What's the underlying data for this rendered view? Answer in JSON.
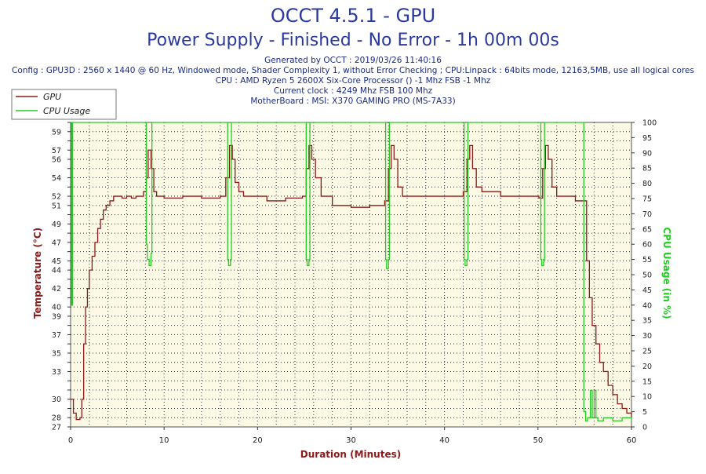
{
  "chart_data": {
    "type": "line",
    "title": "OCCT 4.5.1 - GPU",
    "subtitle": "Power Supply - Finished - No Error - 1h 00m 00s",
    "info_lines": [
      "Generated by OCCT : 2019/03/26 11:40:16",
      "Config : GPU3D : 2560 x 1440 @ 60 Hz, Windowed mode, Shader Complexity 1, without Error Checking ; CPU:Linpack : 64bits mode, 12163,5MB, use all logical cores",
      "CPU : AMD Ryzen 5 2600X Six-Core Processor () -1 Mhz FSB -1 Mhz",
      "Current clock : 4249 Mhz FSB 100 Mhz",
      "MotherBoard : MSI: X370 GAMING PRO (MS-7A33)"
    ],
    "xlabel": "Duration (Minutes)",
    "ylabel": "Temperature (°C)",
    "y2label": "CPU Usage (in %)",
    "xlim": [
      0,
      60
    ],
    "ylim": [
      27,
      60
    ],
    "y2lim": [
      0,
      100
    ],
    "x_ticks": [
      "0",
      "10",
      "20",
      "30",
      "40",
      "50",
      "60"
    ],
    "y_ticks": [
      "27",
      "28",
      "29",
      "30",
      "31",
      "32",
      "33",
      "34",
      "35",
      "36",
      "37",
      "38",
      "39",
      "40",
      "41",
      "42",
      "43",
      "44",
      "45",
      "46",
      "47",
      "48",
      "49",
      "50",
      "51",
      "52",
      "53",
      "54",
      "55",
      "56",
      "57",
      "58",
      "59",
      "60"
    ],
    "y_tick_labels": [
      "27",
      "28",
      "",
      "30",
      "",
      "",
      "33",
      "",
      "35",
      "",
      "37",
      "",
      "39",
      "40",
      "",
      "42",
      "",
      "44",
      "45",
      "",
      "47",
      "",
      "49",
      "",
      "51",
      "52",
      "",
      "54",
      "",
      "56",
      "57",
      "",
      "59",
      ""
    ],
    "y2_ticks": [
      "0",
      "5",
      "10",
      "15",
      "20",
      "25",
      "30",
      "35",
      "40",
      "45",
      "50",
      "55",
      "60",
      "65",
      "70",
      "75",
      "80",
      "85",
      "90",
      "95",
      "100"
    ],
    "grid": true,
    "legend_position": "top-left",
    "series": [
      {
        "name": "GPU",
        "axis": "left",
        "color": "#8b1a1a",
        "x": [
          0,
          0.3,
          0.6,
          1.0,
          1.2,
          1.4,
          1.6,
          1.8,
          2.0,
          2.3,
          2.6,
          2.9,
          3.2,
          3.5,
          3.8,
          4.2,
          4.6,
          5.0,
          5.5,
          6.0,
          6.5,
          7.0,
          7.5,
          7.8,
          8.1,
          8.3,
          8.6,
          8.9,
          9.2,
          10,
          12,
          14,
          16,
          16.6,
          17.0,
          17.3,
          17.6,
          18.0,
          18.5,
          19,
          21,
          23,
          24.8,
          25.2,
          25.5,
          25.8,
          26.2,
          26.8,
          28,
          30,
          32,
          33.6,
          34.0,
          34.3,
          34.6,
          35.0,
          35.5,
          37,
          39,
          41,
          42.0,
          42.4,
          42.7,
          43.0,
          43.4,
          44,
          46,
          48,
          50.1,
          50.5,
          50.8,
          51.1,
          51.5,
          52,
          53,
          54,
          55.0,
          55.2,
          55.5,
          55.8,
          56.2,
          56.6,
          57.0,
          57.5,
          58.0,
          58.5,
          59.0,
          59.5,
          60
        ],
        "values": [
          30,
          28.5,
          27.8,
          28,
          30,
          36,
          40,
          42,
          44,
          45.5,
          47,
          48.5,
          49.5,
          50.5,
          51,
          51.5,
          52,
          52,
          51.8,
          52,
          51.8,
          52,
          52,
          52.5,
          54,
          57,
          55,
          52.5,
          52,
          51.8,
          52,
          51.8,
          52,
          54,
          57.5,
          56,
          53.5,
          52.5,
          52,
          52,
          51.5,
          51.8,
          52,
          55,
          57.5,
          56,
          54,
          52,
          51,
          50.8,
          51,
          51.5,
          55,
          57.5,
          56,
          53,
          52,
          52,
          52,
          52,
          52.5,
          56,
          57.5,
          55,
          53,
          52.5,
          52,
          52,
          51.8,
          55,
          57.5,
          56,
          53,
          52,
          52,
          51.5,
          51.5,
          45,
          41,
          38,
          36,
          34,
          33,
          31.5,
          30.5,
          29.5,
          29,
          28.5,
          28
        ]
      },
      {
        "name": "CPU Usage",
        "axis": "right",
        "color": "#22cc22",
        "x": [
          0,
          0.1,
          0.2,
          0.25,
          8.0,
          8.1,
          8.2,
          8.4,
          8.6,
          8.7,
          8.8,
          16.7,
          16.8,
          16.9,
          17.1,
          17.2,
          25.1,
          25.2,
          25.3,
          25.5,
          25.6,
          33.6,
          33.7,
          33.8,
          34.0,
          34.1,
          42.0,
          42.1,
          42.2,
          42.4,
          42.5,
          50.2,
          50.3,
          50.4,
          50.6,
          50.7,
          54.8,
          54.9,
          55.1,
          55.3,
          55.6,
          55.8,
          56.0,
          56.2,
          56.4,
          57.0,
          58.0,
          59.0,
          60
        ],
        "values": [
          100,
          40,
          100,
          100,
          100,
          60,
          55,
          53,
          57,
          100,
          100,
          100,
          55,
          53,
          55,
          100,
          100,
          55,
          53,
          55,
          100,
          100,
          55,
          52,
          55,
          100,
          100,
          55,
          53,
          55,
          100,
          100,
          55,
          53,
          55,
          100,
          100,
          5,
          2,
          3,
          12,
          3,
          12,
          3,
          2,
          3,
          2,
          3,
          2
        ]
      }
    ],
    "colors": {
      "plot_bg": "#fcf9e4",
      "title": "#2b3aa0",
      "axis_label": "#8b1a1a",
      "y2_label": "#22cc22"
    }
  }
}
